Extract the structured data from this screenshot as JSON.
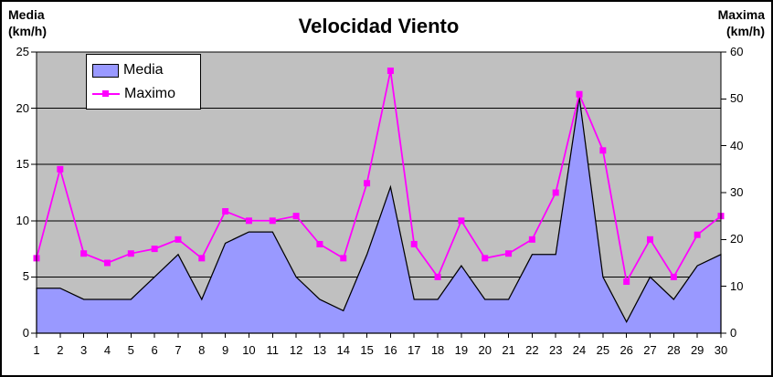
{
  "title": "Velocidad Viento",
  "left_axis_header": {
    "line1": "Media",
    "line2": "(km/h)"
  },
  "right_axis_header": {
    "line1": "Maxima",
    "line2": "(km/h)"
  },
  "legend": {
    "position": "top-left-inside",
    "items": [
      {
        "label": "Media",
        "swatch": "area-box"
      },
      {
        "label": "Maximo",
        "swatch": "line-with-square-marker"
      }
    ]
  },
  "colors": {
    "area_fill": "#9999FF",
    "area_outline": "#000000",
    "line": "#FF00FF",
    "plot_background": "#C0C0C0",
    "gridline": "#000000",
    "text": "#000000",
    "background": "#FFFFFF"
  },
  "chart_data": {
    "type": "combo-area-line",
    "title": "Velocidad Viento",
    "categories": [
      1,
      2,
      3,
      4,
      5,
      6,
      7,
      8,
      9,
      10,
      11,
      12,
      13,
      14,
      15,
      16,
      17,
      18,
      19,
      20,
      21,
      22,
      23,
      24,
      25,
      26,
      27,
      28,
      29,
      30
    ],
    "series": [
      {
        "name": "Media",
        "type": "area",
        "axis": "left",
        "color": "#9999FF",
        "outline_color": "#000000",
        "values": [
          4,
          4,
          3,
          3,
          3,
          5,
          7,
          3,
          8,
          9,
          9,
          5,
          3,
          2,
          7,
          13,
          3,
          3,
          6,
          3,
          3,
          7,
          7,
          21,
          5,
          1,
          5,
          3,
          6,
          7
        ]
      },
      {
        "name": "Maximo",
        "type": "line",
        "axis": "right",
        "color": "#FF00FF",
        "marker": "square",
        "values": [
          16,
          35,
          17,
          15,
          17,
          18,
          20,
          16,
          26,
          24,
          24,
          25,
          19,
          16,
          32,
          56,
          19,
          12,
          24,
          16,
          17,
          20,
          30,
          51,
          39,
          11,
          20,
          12,
          21,
          25
        ]
      }
    ],
    "left_axis": {
      "label": "Media (km/h)",
      "min": 0,
      "max": 25,
      "ticks": [
        0,
        5,
        10,
        15,
        20,
        25
      ]
    },
    "right_axis": {
      "label": "Maxima (km/h)",
      "min": 0,
      "max": 60,
      "ticks": [
        0,
        10,
        20,
        30,
        40,
        50,
        60
      ]
    },
    "x_axis": {
      "label": "",
      "tick_per_category": true
    },
    "gridlines": {
      "axis": "left",
      "values": [
        5,
        10,
        15,
        20
      ],
      "color": "#000000"
    },
    "plot_background": "#C0C0C0",
    "legend_position": "top-left-inside"
  }
}
